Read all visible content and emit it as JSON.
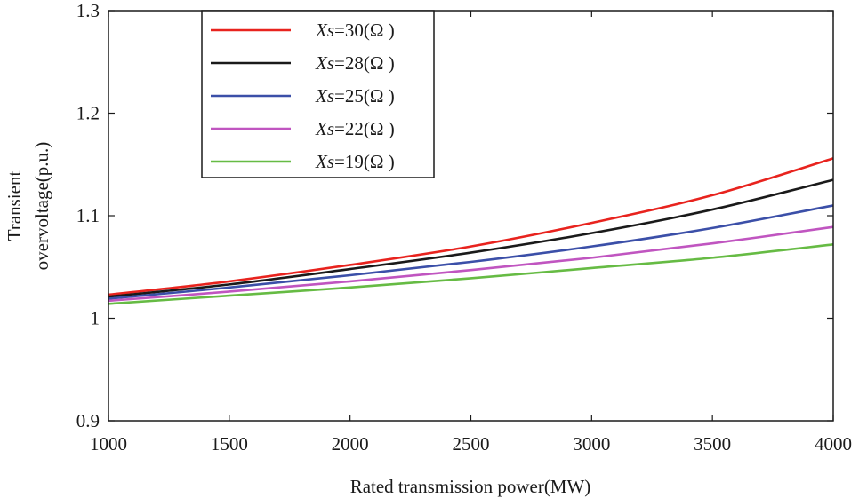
{
  "chart_data": {
    "type": "line",
    "title": "",
    "xlabel": "Rated transmission power(MW)",
    "ylabel_lines": [
      "Transient",
      "overvoltage(p.u.)"
    ],
    "xlim": [
      1000,
      4000
    ],
    "ylim": [
      0.9,
      1.3
    ],
    "xticks": [
      1000,
      1500,
      2000,
      2500,
      3000,
      3500,
      4000
    ],
    "yticks": [
      0.9,
      1,
      1.1,
      1.2,
      1.3
    ],
    "xtick_labels": [
      "1000",
      "1500",
      "2000",
      "2500",
      "3000",
      "3500",
      "4000"
    ],
    "ytick_labels": [
      "0.9",
      "1",
      "1.1",
      "1.2",
      "1.3"
    ],
    "legend_position": "top-left",
    "x": [
      1000,
      1500,
      2000,
      2500,
      3000,
      3500,
      4000
    ],
    "series": [
      {
        "name_var": "Xs",
        "name_rest": "=30(Ω )",
        "color": "#e8231e",
        "values": [
          1.023,
          1.036,
          1.052,
          1.07,
          1.093,
          1.12,
          1.156
        ]
      },
      {
        "name_var": "Xs",
        "name_rest": "=28(Ω )",
        "color": "#1a1a1a",
        "values": [
          1.021,
          1.033,
          1.048,
          1.064,
          1.083,
          1.106,
          1.135
        ]
      },
      {
        "name_var": "Xs",
        "name_rest": "=25(Ω )",
        "color": "#3b4fa8",
        "values": [
          1.019,
          1.03,
          1.042,
          1.055,
          1.07,
          1.088,
          1.11
        ]
      },
      {
        "name_var": "Xs",
        "name_rest": "=22(Ω )",
        "color": "#c055c0",
        "values": [
          1.017,
          1.026,
          1.036,
          1.047,
          1.059,
          1.073,
          1.089
        ]
      },
      {
        "name_var": "Xs",
        "name_rest": "=19(Ω )",
        "color": "#66bb44",
        "values": [
          1.014,
          1.022,
          1.03,
          1.039,
          1.049,
          1.059,
          1.072
        ]
      }
    ]
  }
}
